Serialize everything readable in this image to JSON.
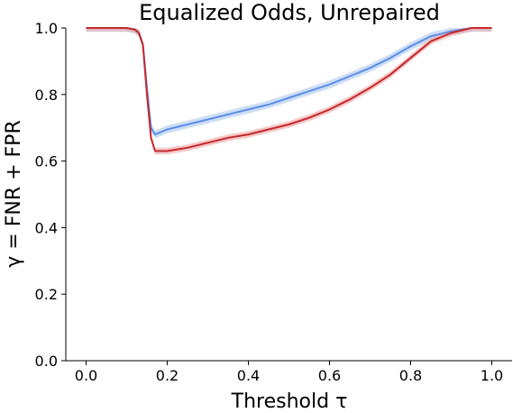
{
  "chart_data": {
    "type": "line",
    "title": "Equalized Odds, Unrepaired",
    "xlabel": "Threshold τ",
    "ylabel": "γ = FNR + FPR",
    "xlim": [
      -0.05,
      1.05
    ],
    "ylim": [
      0.0,
      1.0
    ],
    "xticks": [
      "0.0",
      "0.2",
      "0.4",
      "0.6",
      "0.8",
      "1.0"
    ],
    "yticks": [
      "0.0",
      "0.2",
      "0.4",
      "0.6",
      "0.8",
      "1.0"
    ],
    "grid": false,
    "series": [
      {
        "color": "#5b8ee6",
        "band_color": "#aec8f2",
        "x": [
          0.0,
          0.05,
          0.1,
          0.12,
          0.13,
          0.14,
          0.15,
          0.16,
          0.17,
          0.2,
          0.25,
          0.3,
          0.35,
          0.4,
          0.45,
          0.5,
          0.55,
          0.6,
          0.65,
          0.7,
          0.75,
          0.8,
          0.85,
          0.9,
          0.95,
          1.0
        ],
        "y": [
          1.0,
          1.0,
          1.0,
          0.995,
          0.985,
          0.95,
          0.82,
          0.7,
          0.68,
          0.695,
          0.71,
          0.725,
          0.74,
          0.755,
          0.77,
          0.79,
          0.81,
          0.83,
          0.855,
          0.88,
          0.91,
          0.945,
          0.975,
          0.99,
          1.0,
          1.0
        ],
        "band": 0.012
      },
      {
        "color": "#c4282b",
        "band_color": "#f0a5a5",
        "x": [
          0.0,
          0.05,
          0.1,
          0.12,
          0.13,
          0.14,
          0.15,
          0.16,
          0.17,
          0.2,
          0.25,
          0.3,
          0.35,
          0.4,
          0.45,
          0.5,
          0.55,
          0.6,
          0.65,
          0.7,
          0.75,
          0.8,
          0.85,
          0.9,
          0.95,
          1.0
        ],
        "y": [
          1.0,
          1.0,
          1.0,
          0.995,
          0.985,
          0.95,
          0.8,
          0.67,
          0.63,
          0.63,
          0.64,
          0.655,
          0.67,
          0.68,
          0.695,
          0.71,
          0.73,
          0.755,
          0.785,
          0.82,
          0.86,
          0.91,
          0.96,
          0.985,
          1.0,
          1.0
        ],
        "band": 0.01
      }
    ]
  }
}
